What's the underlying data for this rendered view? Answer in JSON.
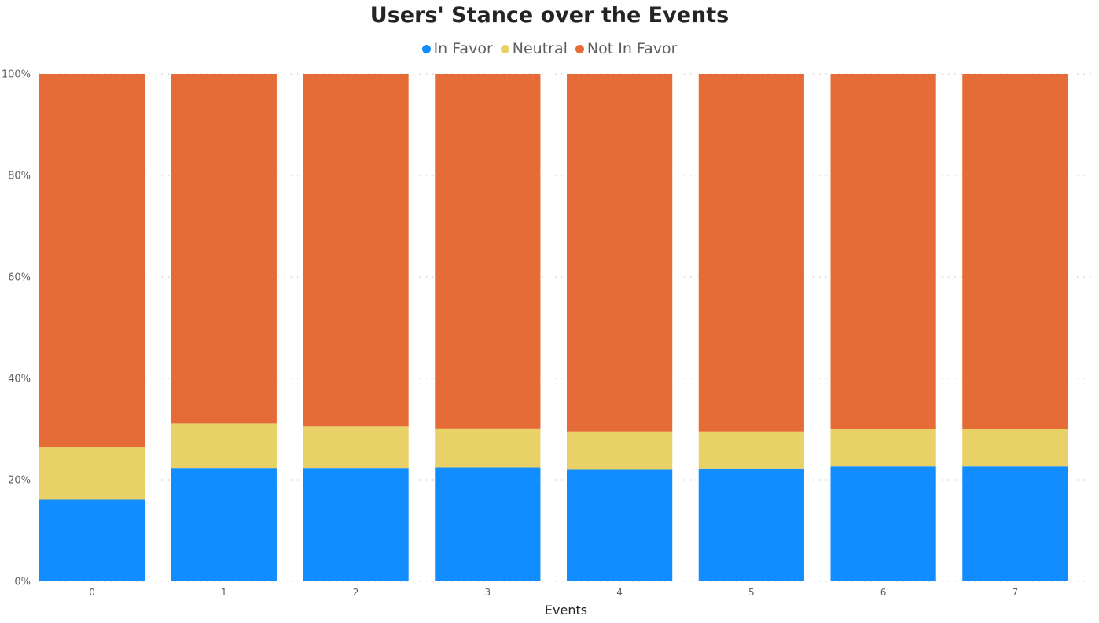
{
  "chart_data": {
    "type": "bar",
    "stacked": true,
    "title": "Users' Stance over the Events",
    "xlabel": "Events",
    "ylabel": "",
    "categories": [
      "0",
      "1",
      "2",
      "3",
      "4",
      "5",
      "6",
      "7"
    ],
    "ylim": [
      0,
      100
    ],
    "yticks": [
      "0%",
      "20%",
      "40%",
      "60%",
      "80%",
      "100%"
    ],
    "grid": true,
    "legend_position": "top-center",
    "series": [
      {
        "name": "In Favor",
        "color": "#118DFF",
        "values": [
          16.2,
          22.3,
          22.3,
          22.4,
          22.1,
          22.2,
          22.6,
          22.6
        ]
      },
      {
        "name": "Neutral",
        "color": "#E8D166",
        "values": [
          10.3,
          8.8,
          8.2,
          7.7,
          7.4,
          7.3,
          7.4,
          7.4
        ]
      },
      {
        "name": "Not In Favor",
        "color": "#E66C37",
        "values": [
          73.5,
          68.9,
          69.5,
          69.9,
          70.5,
          70.5,
          70.0,
          70.0
        ]
      }
    ]
  }
}
